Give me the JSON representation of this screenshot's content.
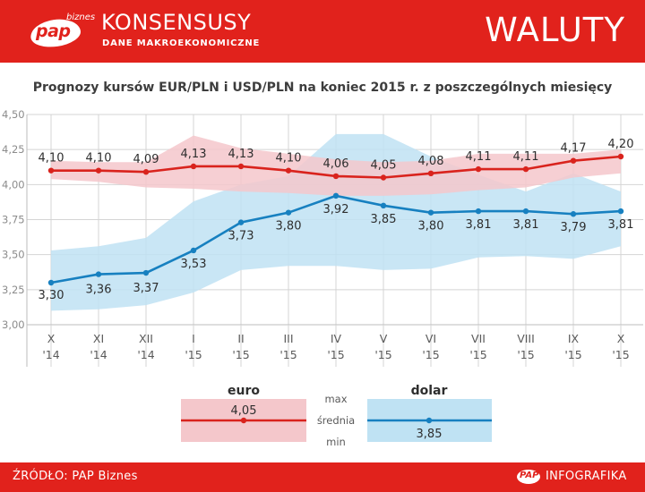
{
  "header": {
    "logo_text": "pap",
    "logo_sub": "biznes",
    "title": "KONSENSUSY",
    "subtitle": "DANE MAKROEKONOMICZNE",
    "section": "WALUTY"
  },
  "footer": {
    "source": "ŹRÓDŁO: PAP Biznes",
    "logo_text": "PAP",
    "label": "INFOGRAFIKA"
  },
  "colors": {
    "brand_red": "#e1221c",
    "euro_line": "#d9231d",
    "euro_band": "#f4c7cb",
    "dollar_line": "#1780c0",
    "dollar_band": "#bfe2f3",
    "grid": "#d4d4d4"
  },
  "chart_data": {
    "type": "line",
    "title": "Prognozy kursów EUR/PLN i USD/PLN na koniec 2015 r. z poszczególnych miesięcy",
    "categories": [
      [
        "X",
        "'14"
      ],
      [
        "XI",
        "'14"
      ],
      [
        "XII",
        "'14"
      ],
      [
        "I",
        "'15"
      ],
      [
        "II",
        "'15"
      ],
      [
        "III",
        "'15"
      ],
      [
        "IV",
        "'15"
      ],
      [
        "V",
        "'15"
      ],
      [
        "VI",
        "'15"
      ],
      [
        "VII",
        "'15"
      ],
      [
        "VIII",
        "'15"
      ],
      [
        "IX",
        "'15"
      ],
      [
        "X",
        "'15"
      ]
    ],
    "y_ticks": [
      "4,50",
      "4,25",
      "4,00",
      "3,75",
      "3,50",
      "3,25",
      "3,00"
    ],
    "ylim": [
      3.0,
      4.5
    ],
    "grid": true,
    "series": [
      {
        "name": "euro",
        "values": [
          4.1,
          4.1,
          4.09,
          4.13,
          4.13,
          4.1,
          4.06,
          4.05,
          4.08,
          4.11,
          4.11,
          4.17,
          4.2
        ],
        "labels": [
          "4,10",
          "4,10",
          "4,09",
          "4,13",
          "4,13",
          "4,10",
          "4,06",
          "4,05",
          "4,08",
          "4,11",
          "4,11",
          "4,17",
          "4,20"
        ],
        "max": [
          4.17,
          4.16,
          4.16,
          4.35,
          4.26,
          4.22,
          4.18,
          4.16,
          4.17,
          4.22,
          4.22,
          4.22,
          4.25
        ],
        "min": [
          4.04,
          4.02,
          3.98,
          3.97,
          3.95,
          3.94,
          3.92,
          3.92,
          3.93,
          3.96,
          3.98,
          4.05,
          4.08
        ]
      },
      {
        "name": "dolar",
        "values": [
          3.3,
          3.36,
          3.37,
          3.53,
          3.73,
          3.8,
          3.92,
          3.85,
          3.8,
          3.81,
          3.81,
          3.79,
          3.81
        ],
        "labels": [
          "3,30",
          "3,36",
          "3,37",
          "3,53",
          "3,73",
          "3,80",
          "3,92",
          "3,85",
          "3,80",
          "3,81",
          "3,81",
          "3,79",
          "3,81"
        ],
        "max": [
          3.53,
          3.56,
          3.62,
          3.88,
          4.0,
          4.06,
          4.36,
          4.36,
          4.2,
          4.07,
          3.95,
          4.08,
          3.95
        ],
        "min": [
          3.1,
          3.11,
          3.14,
          3.23,
          3.39,
          3.42,
          3.42,
          3.39,
          3.4,
          3.48,
          3.49,
          3.47,
          3.56
        ]
      }
    ],
    "legend": {
      "euro_title": "euro",
      "euro_value": "4,05",
      "dollar_title": "dolar",
      "dollar_value": "3,85",
      "max_label": "max",
      "mean_label": "średnia",
      "min_label": "min"
    }
  }
}
